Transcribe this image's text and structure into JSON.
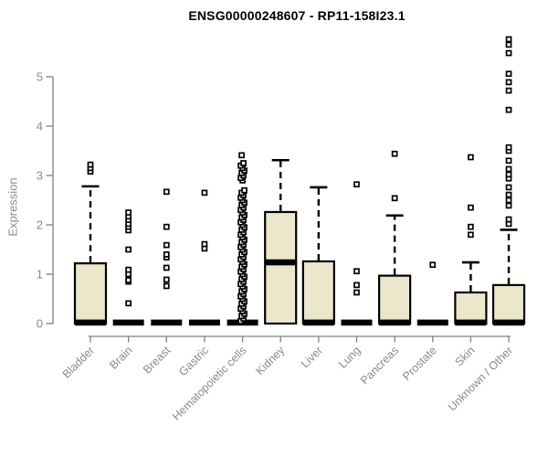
{
  "chart_data": {
    "type": "boxplot",
    "title": "ENSG00000248607 - RP11-158I23.1",
    "ylabel": "Expression",
    "yticks": [
      0,
      1,
      2,
      3,
      4,
      5
    ],
    "ylim": [
      0,
      5.9
    ],
    "grid": false,
    "legend": "none",
    "colors": {
      "box_fill": "#ECE7CA",
      "box_stroke": "#000000",
      "axis": "#808080",
      "tick_labels": "#8a8a8a",
      "title": "#000000",
      "outlier_fill": "#ffffff"
    },
    "categories": [
      "Bladder",
      "Brain",
      "Breast",
      "Gastric",
      "Hematopoietic cells",
      "Kidney",
      "Liver",
      "Lung",
      "Pancreas",
      "Prostate",
      "Skin",
      "Unknown / Other"
    ],
    "series": [
      {
        "name": "Bladder",
        "q1": 0,
        "median": 0.02,
        "q3": 1.22,
        "whisker_low": 0,
        "whisker_high": 2.78,
        "outliers": [
          3.08,
          3.15,
          3.22
        ]
      },
      {
        "name": "Brain",
        "q1": 0,
        "median": 0.02,
        "q3": 0,
        "whisker_low": 0,
        "whisker_high": 0,
        "outliers": [
          0.41,
          0.85,
          0.88,
          1.0,
          1.09,
          1.5,
          1.89,
          1.96,
          2.02,
          2.1,
          2.17,
          2.25
        ]
      },
      {
        "name": "Breast",
        "q1": 0,
        "median": 0.02,
        "q3": 0,
        "whisker_low": 0,
        "whisker_high": 0,
        "outliers": [
          0.76,
          0.89,
          1.13,
          1.34,
          1.4,
          1.59,
          1.96,
          2.67
        ]
      },
      {
        "name": "Gastric",
        "q1": 0,
        "median": 0.02,
        "q3": 0,
        "whisker_low": 0,
        "whisker_high": 0,
        "outliers": [
          1.52,
          1.61,
          2.65
        ]
      },
      {
        "name": "Hematopoietic cells",
        "q1": 0,
        "median": 0.02,
        "q3": 0,
        "whisker_low": 0,
        "whisker_high": 0,
        "outliers": [
          0.05,
          0.1,
          0.15,
          0.2,
          0.25,
          0.3,
          0.35,
          0.4,
          0.45,
          0.5,
          0.55,
          0.6,
          0.65,
          0.7,
          0.75,
          0.8,
          0.85,
          0.9,
          0.95,
          1.0,
          1.05,
          1.1,
          1.15,
          1.2,
          1.25,
          1.3,
          1.35,
          1.4,
          1.45,
          1.5,
          1.55,
          1.6,
          1.65,
          1.7,
          1.75,
          1.8,
          1.85,
          1.9,
          1.95,
          2.0,
          2.05,
          2.1,
          2.15,
          2.2,
          2.25,
          2.3,
          2.35,
          2.4,
          2.45,
          2.5,
          2.55,
          2.6,
          2.65,
          2.7,
          2.9,
          2.95,
          3.0,
          3.05,
          3.1,
          3.15,
          3.2,
          3.25,
          3.41
        ]
      },
      {
        "name": "Kidney",
        "q1": 0,
        "median": 1.24,
        "q3": 2.26,
        "whisker_low": 0,
        "whisker_high": 3.31,
        "outliers": []
      },
      {
        "name": "Liver",
        "q1": 0,
        "median": 0.02,
        "q3": 1.26,
        "whisker_low": 0,
        "whisker_high": 2.76,
        "outliers": []
      },
      {
        "name": "Lung",
        "q1": 0,
        "median": 0.02,
        "q3": 0,
        "whisker_low": 0,
        "whisker_high": 0,
        "outliers": [
          0.63,
          0.78,
          1.06,
          2.82
        ]
      },
      {
        "name": "Pancreas",
        "q1": 0,
        "median": 0.02,
        "q3": 0.97,
        "whisker_low": 0,
        "whisker_high": 2.19,
        "outliers": [
          2.54,
          3.44
        ]
      },
      {
        "name": "Prostate",
        "q1": 0,
        "median": 0.02,
        "q3": 0,
        "whisker_low": 0,
        "whisker_high": 0,
        "outliers": [
          1.19
        ]
      },
      {
        "name": "Skin",
        "q1": 0,
        "median": 0.02,
        "q3": 0.63,
        "whisker_low": 0,
        "whisker_high": 1.24,
        "outliers": [
          1.8,
          1.96,
          2.35,
          3.37
        ]
      },
      {
        "name": "Unknown / Other",
        "q1": 0,
        "median": 0.02,
        "q3": 0.78,
        "whisker_low": 0,
        "whisker_high": 1.9,
        "outliers": [
          2.02,
          2.11,
          2.39,
          2.5,
          2.61,
          2.76,
          2.94,
          3.02,
          3.13,
          3.3,
          3.5,
          3.57,
          4.33,
          4.72,
          4.89,
          5.06,
          5.48,
          5.65,
          5.76
        ]
      }
    ]
  }
}
